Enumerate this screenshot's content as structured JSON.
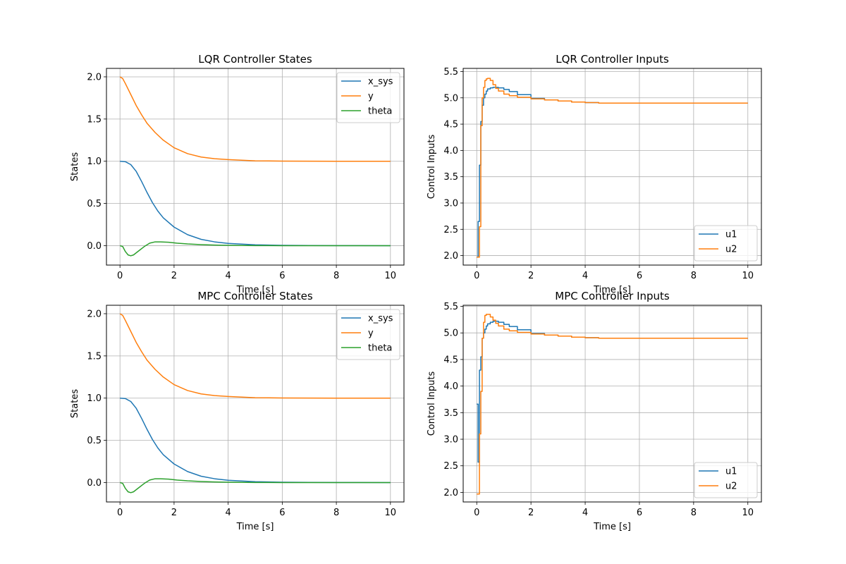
{
  "chart_data": [
    {
      "type": "line",
      "title": "LQR Controller States",
      "xlabel": "Time [s]",
      "ylabel": "States",
      "xlim": [
        -0.5,
        10.5
      ],
      "ylim": [
        -0.23,
        2.1
      ],
      "xticks": [
        0,
        2,
        4,
        6,
        8,
        10
      ],
      "yticks": [
        0.0,
        0.5,
        1.0,
        1.5,
        2.0
      ],
      "xtick_labels": [
        "0",
        "2",
        "4",
        "6",
        "8",
        "10"
      ],
      "ytick_labels": [
        "0.0",
        "0.5",
        "1.0",
        "1.5",
        "2.0"
      ],
      "grid": true,
      "legend": "top-right",
      "step": false,
      "series": [
        {
          "name": "x_sys",
          "color": "#1f77b4",
          "x": [
            0,
            0.2,
            0.4,
            0.6,
            0.8,
            1.0,
            1.2,
            1.4,
            1.6,
            2.0,
            2.5,
            3.0,
            3.5,
            4.0,
            5.0,
            6.0,
            7.0,
            8.0,
            10.0
          ],
          "y": [
            1.0,
            0.995,
            0.96,
            0.88,
            0.76,
            0.63,
            0.51,
            0.41,
            0.33,
            0.22,
            0.13,
            0.075,
            0.045,
            0.027,
            0.01,
            0.004,
            0.002,
            0.001,
            0.0
          ]
        },
        {
          "name": "y",
          "color": "#ff7f0e",
          "x": [
            0,
            0.1,
            0.2,
            0.4,
            0.6,
            0.8,
            1.0,
            1.3,
            1.6,
            2.0,
            2.5,
            3.0,
            3.5,
            4.0,
            5.0,
            6.0,
            7.0,
            8.0,
            10.0
          ],
          "y": [
            2.0,
            1.98,
            1.92,
            1.79,
            1.66,
            1.55,
            1.45,
            1.34,
            1.25,
            1.16,
            1.09,
            1.05,
            1.03,
            1.02,
            1.005,
            1.002,
            1.001,
            1.0,
            1.0
          ]
        },
        {
          "name": "theta",
          "color": "#2ca02c",
          "x": [
            0,
            0.1,
            0.2,
            0.3,
            0.4,
            0.5,
            0.7,
            0.9,
            1.1,
            1.3,
            1.5,
            1.8,
            2.1,
            2.5,
            3.0,
            3.5,
            4.0,
            5.0,
            6.0,
            8.0,
            10.0
          ],
          "y": [
            0.0,
            -0.01,
            -0.07,
            -0.11,
            -0.12,
            -0.11,
            -0.06,
            -0.01,
            0.03,
            0.045,
            0.045,
            0.04,
            0.03,
            0.02,
            0.012,
            0.007,
            0.004,
            0.001,
            0.0,
            0.0,
            0.0
          ]
        }
      ]
    },
    {
      "type": "line",
      "title": "LQR Controller Inputs",
      "xlabel": "Time [s]",
      "ylabel": "Control Inputs",
      "xlim": [
        -0.5,
        10.5
      ],
      "ylim": [
        1.82,
        5.56
      ],
      "xticks": [
        0,
        2,
        4,
        6,
        8,
        10
      ],
      "yticks": [
        2.0,
        2.5,
        3.0,
        3.5,
        4.0,
        4.5,
        5.0,
        5.5
      ],
      "xtick_labels": [
        "0",
        "2",
        "4",
        "6",
        "8",
        "10"
      ],
      "ytick_labels": [
        "2.0",
        "2.5",
        "3.0",
        "3.5",
        "4.0",
        "4.5",
        "5.0",
        "5.5"
      ],
      "grid": true,
      "legend": "bottom-right",
      "step": true,
      "series": [
        {
          "name": "u1",
          "color": "#1f77b4",
          "x": [
            0,
            0.05,
            0.1,
            0.15,
            0.2,
            0.25,
            0.3,
            0.35,
            0.4,
            0.5,
            0.6,
            0.7,
            0.8,
            1.0,
            1.2,
            1.5,
            2.0,
            2.5,
            3.0,
            3.5,
            4.0,
            4.5,
            5.0,
            10.0
          ],
          "y": [
            1.97,
            2.65,
            3.72,
            4.55,
            4.86,
            5.0,
            5.07,
            5.13,
            5.17,
            5.19,
            5.2,
            5.2,
            5.19,
            5.16,
            5.12,
            5.06,
            4.99,
            4.96,
            4.94,
            4.92,
            4.91,
            4.9,
            4.9,
            4.9
          ]
        },
        {
          "name": "u2",
          "color": "#ff7f0e",
          "x": [
            0,
            0.1,
            0.15,
            0.2,
            0.25,
            0.3,
            0.35,
            0.4,
            0.5,
            0.6,
            0.7,
            0.8,
            1.0,
            1.2,
            1.5,
            2.0,
            2.5,
            3.0,
            3.5,
            4.0,
            4.5,
            5.0,
            10.0
          ],
          "y": [
            1.97,
            2.55,
            4.47,
            5.0,
            5.2,
            5.33,
            5.36,
            5.37,
            5.33,
            5.25,
            5.18,
            5.13,
            5.07,
            5.04,
            5.01,
            4.98,
            4.96,
            4.94,
            4.92,
            4.91,
            4.9,
            4.9,
            4.9
          ]
        }
      ]
    },
    {
      "type": "line",
      "title": "MPC Controller States",
      "xlabel": "Time [s]",
      "ylabel": "States",
      "xlim": [
        -0.5,
        10.5
      ],
      "ylim": [
        -0.23,
        2.1
      ],
      "xticks": [
        0,
        2,
        4,
        6,
        8,
        10
      ],
      "yticks": [
        0.0,
        0.5,
        1.0,
        1.5,
        2.0
      ],
      "xtick_labels": [
        "0",
        "2",
        "4",
        "6",
        "8",
        "10"
      ],
      "ytick_labels": [
        "0.0",
        "0.5",
        "1.0",
        "1.5",
        "2.0"
      ],
      "grid": true,
      "legend": "top-right",
      "step": false,
      "series": [
        {
          "name": "x_sys",
          "color": "#1f77b4",
          "x": [
            0,
            0.2,
            0.4,
            0.6,
            0.8,
            1.0,
            1.2,
            1.4,
            1.6,
            2.0,
            2.5,
            3.0,
            3.5,
            4.0,
            5.0,
            6.0,
            7.0,
            8.0,
            10.0
          ],
          "y": [
            1.0,
            0.995,
            0.96,
            0.88,
            0.76,
            0.63,
            0.51,
            0.41,
            0.33,
            0.22,
            0.13,
            0.075,
            0.045,
            0.027,
            0.01,
            0.004,
            0.002,
            0.001,
            0.0
          ]
        },
        {
          "name": "y",
          "color": "#ff7f0e",
          "x": [
            0,
            0.1,
            0.2,
            0.4,
            0.6,
            0.8,
            1.0,
            1.3,
            1.6,
            2.0,
            2.5,
            3.0,
            3.5,
            4.0,
            5.0,
            6.0,
            7.0,
            8.0,
            10.0
          ],
          "y": [
            2.0,
            1.98,
            1.92,
            1.79,
            1.66,
            1.55,
            1.45,
            1.34,
            1.25,
            1.16,
            1.09,
            1.05,
            1.03,
            1.02,
            1.005,
            1.002,
            1.001,
            1.0,
            1.0
          ]
        },
        {
          "name": "theta",
          "color": "#2ca02c",
          "x": [
            0,
            0.1,
            0.2,
            0.3,
            0.4,
            0.5,
            0.7,
            0.9,
            1.1,
            1.3,
            1.5,
            1.8,
            2.1,
            2.5,
            3.0,
            3.5,
            4.0,
            5.0,
            6.0,
            8.0,
            10.0
          ],
          "y": [
            0.0,
            -0.01,
            -0.07,
            -0.11,
            -0.12,
            -0.11,
            -0.06,
            -0.01,
            0.03,
            0.045,
            0.045,
            0.04,
            0.03,
            0.02,
            0.012,
            0.007,
            0.004,
            0.001,
            0.0,
            0.0,
            0.0
          ]
        }
      ]
    },
    {
      "type": "line",
      "title": "MPC Controller Inputs",
      "xlabel": "Time [s]",
      "ylabel": "Control Inputs",
      "xlim": [
        -0.5,
        10.5
      ],
      "ylim": [
        1.82,
        5.52
      ],
      "xticks": [
        0,
        2,
        4,
        6,
        8,
        10
      ],
      "yticks": [
        2.0,
        2.5,
        3.0,
        3.5,
        4.0,
        4.5,
        5.0,
        5.5
      ],
      "xtick_labels": [
        "0",
        "2",
        "4",
        "6",
        "8",
        "10"
      ],
      "ytick_labels": [
        "2.0",
        "2.5",
        "3.0",
        "3.5",
        "4.0",
        "4.5",
        "5.0",
        "5.5"
      ],
      "grid": true,
      "legend": "bottom-right",
      "step": true,
      "series": [
        {
          "name": "u1",
          "color": "#1f77b4",
          "x": [
            0,
            0.05,
            0.1,
            0.15,
            0.2,
            0.25,
            0.3,
            0.35,
            0.4,
            0.5,
            0.6,
            0.7,
            0.8,
            1.0,
            1.2,
            1.5,
            2.0,
            2.5,
            3.0,
            3.5,
            4.0,
            4.5,
            5.0,
            10.0
          ],
          "y": [
            3.66,
            2.57,
            4.3,
            4.55,
            4.9,
            5.0,
            5.07,
            5.13,
            5.17,
            5.2,
            5.22,
            5.22,
            5.2,
            5.16,
            5.12,
            5.06,
            4.99,
            4.96,
            4.94,
            4.92,
            4.91,
            4.9,
            4.9,
            4.9
          ]
        },
        {
          "name": "u2",
          "color": "#ff7f0e",
          "x": [
            0,
            0.1,
            0.15,
            0.2,
            0.25,
            0.3,
            0.35,
            0.4,
            0.5,
            0.6,
            0.7,
            0.8,
            1.0,
            1.2,
            1.5,
            2.0,
            2.5,
            3.0,
            3.5,
            4.0,
            4.5,
            5.0,
            10.0
          ],
          "y": [
            1.97,
            3.1,
            3.9,
            4.9,
            5.2,
            5.33,
            5.35,
            5.35,
            5.3,
            5.24,
            5.18,
            5.13,
            5.07,
            5.04,
            5.01,
            4.98,
            4.96,
            4.94,
            4.92,
            4.91,
            4.9,
            4.9,
            4.9
          ]
        }
      ]
    }
  ]
}
